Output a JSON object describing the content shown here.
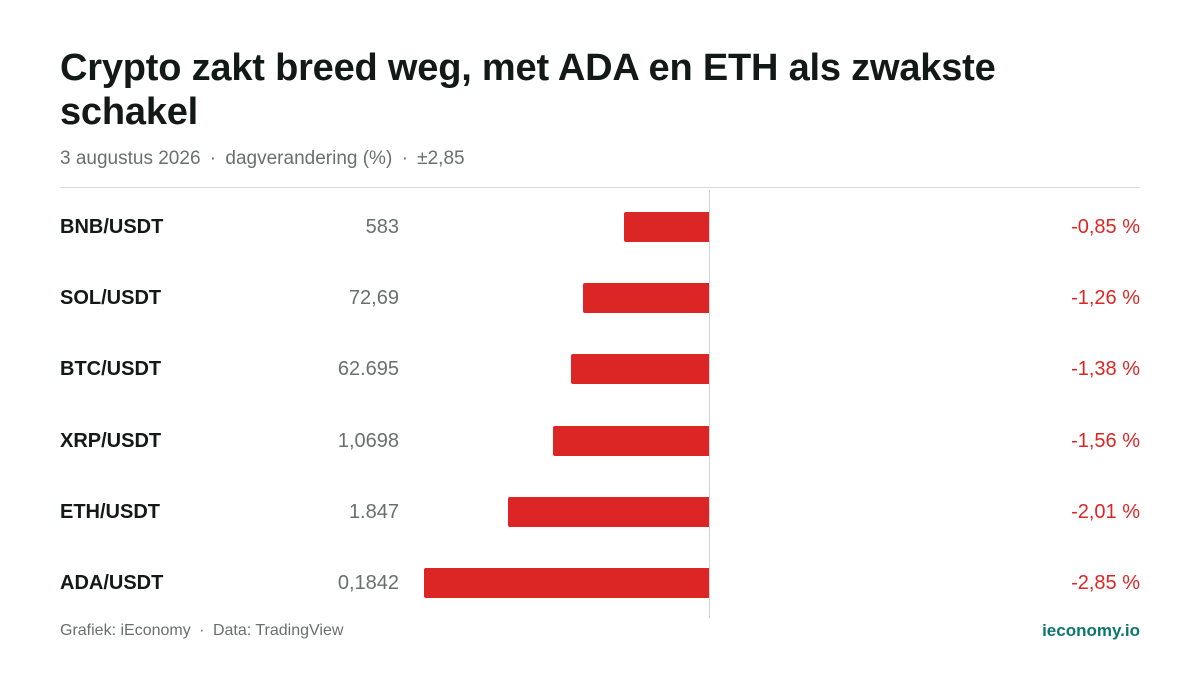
{
  "title": "Crypto zakt breed weg, met ADA en ETH als zwakste schakel",
  "subtitle": {
    "date": "3 augustus 2026",
    "measure": "dagverandering (%)",
    "scale": "±2,85",
    "separator": "·"
  },
  "footer": {
    "graphic": "Grafiek: iEconomy",
    "source": "Data: TradingView",
    "separator": "·",
    "brand": "ieconomy.io"
  },
  "colors": {
    "negative": "#dc2626",
    "brand": "#0f766e",
    "muted_text": "#6a6f6d"
  },
  "chart_data": {
    "type": "bar",
    "orientation": "horizontal",
    "title": "Crypto zakt breed weg, met ADA en ETH als zwakste schakel",
    "scale_max_abs": 2.85,
    "grid": false,
    "legend": "none",
    "categories": [
      "BNB/USDT",
      "SOL/USDT",
      "BTC/USDT",
      "XRP/USDT",
      "ETH/USDT",
      "ADA/USDT"
    ],
    "prices": [
      "583",
      "72,69",
      "62.695",
      "1,0698",
      "1.847",
      "0,1842"
    ],
    "values": [
      -0.85,
      -1.26,
      -1.38,
      -1.56,
      -2.01,
      -2.85
    ],
    "value_labels": [
      "-0,85 %",
      "-1,26 %",
      "-1,38 %",
      "-1,56 %",
      "-2,01 %",
      "-2,85 %"
    ]
  }
}
